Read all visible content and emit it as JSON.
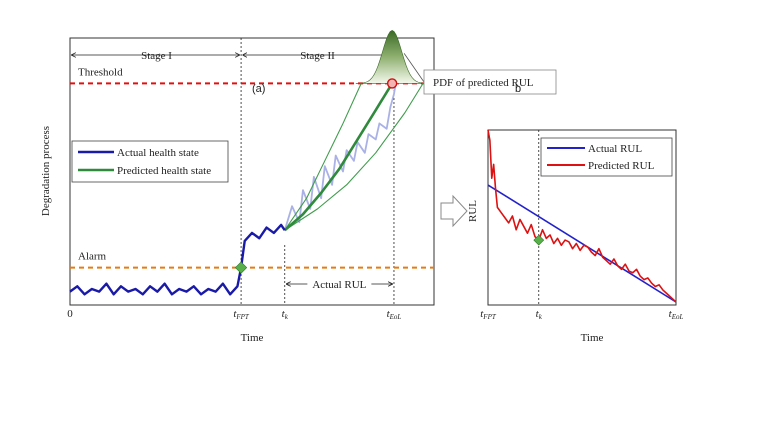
{
  "chart_data": [
    {
      "type": "line",
      "panel_label": "(a)",
      "xlabel": "Time",
      "ylabel": "Degradation process",
      "x_ticks": [
        "0",
        "t_FPT",
        "t_k",
        "t_EoL"
      ],
      "stages": [
        "Stage I",
        "Stage II"
      ],
      "threshold_label": "Threshold",
      "alarm_label": "Alarm",
      "pdf_label": "PDF of predicted RUL",
      "actual_rul_label": "Actual RUL",
      "xlim": [
        0,
        100
      ],
      "ylim": [
        0,
        100
      ],
      "t_fpt": 47,
      "t_k": 59,
      "t_eol": 89,
      "threshold_level": 83,
      "alarm_level": 14,
      "legend": [
        "Actual health state",
        "Predicted health state"
      ],
      "series": [
        {
          "name": "Actual health state",
          "color": "#1a1aa8",
          "x": [
            0,
            2,
            4,
            6,
            8,
            10,
            12,
            14,
            16,
            18,
            20,
            22,
            24,
            26,
            28,
            30,
            32,
            34,
            36,
            38,
            40,
            42,
            44,
            46,
            47,
            48,
            50,
            52,
            54,
            56,
            58,
            59
          ],
          "y": [
            5,
            7,
            4,
            6,
            5,
            8,
            4,
            7,
            5,
            6,
            4,
            7,
            5,
            8,
            4,
            6,
            5,
            7,
            4,
            6,
            5,
            8,
            4,
            7,
            14,
            24,
            27,
            25,
            29,
            27,
            30,
            28
          ]
        },
        {
          "name": "Predicted health state",
          "color": "#2f8a3c",
          "x": [
            59,
            64,
            69,
            74,
            79,
            84,
            88.5
          ],
          "y": [
            28,
            34,
            42,
            51,
            62,
            73,
            83
          ]
        },
        {
          "name": "Prediction bound upper",
          "color": "#3f9c4c",
          "x": [
            59,
            65,
            70,
            75,
            80
          ],
          "y": [
            28,
            40,
            54,
            68,
            83
          ]
        },
        {
          "name": "Prediction bound lower",
          "color": "#3f9c4c",
          "x": [
            59,
            68,
            76,
            84,
            92,
            97
          ],
          "y": [
            28,
            36,
            45,
            57,
            72,
            83
          ]
        },
        {
          "name": "Actual future state",
          "color": "#a9b1e6",
          "x": [
            59,
            61,
            63,
            64,
            66,
            67,
            69,
            70,
            72,
            73,
            75,
            76,
            78,
            79,
            81,
            82,
            84,
            85,
            87,
            88,
            89,
            89.5
          ],
          "y": [
            28,
            37,
            31,
            43,
            36,
            48,
            40,
            52,
            45,
            56,
            50,
            58,
            54,
            61,
            57,
            64,
            62,
            68,
            66,
            74,
            79,
            83
          ]
        }
      ]
    },
    {
      "type": "line",
      "panel_label": "b",
      "xlabel": "Time",
      "ylabel": "RUL",
      "x_ticks": [
        "t_FPT",
        "t_k",
        "t_EoL"
      ],
      "xlim": [
        0,
        100
      ],
      "ylim": [
        0,
        100
      ],
      "t_k": 27,
      "legend": [
        "Actual RUL",
        "Predicted RUL"
      ],
      "series": [
        {
          "name": "Actual RUL",
          "color": "#2222cc",
          "x": [
            0,
            100
          ],
          "y": [
            68,
            0
          ]
        },
        {
          "name": "Predicted RUL",
          "color": "#dd1111",
          "x": [
            0,
            1,
            2,
            3,
            4,
            5,
            7,
            9,
            11,
            13,
            15,
            17,
            19,
            21,
            23,
            25,
            27,
            29,
            31,
            33,
            35,
            37,
            39,
            41,
            43,
            45,
            47,
            49,
            51,
            53,
            55,
            57,
            59,
            61,
            63,
            65,
            67,
            69,
            71,
            73,
            75,
            77,
            79,
            81,
            83,
            85,
            87,
            89,
            91,
            93,
            95,
            97,
            100
          ],
          "y": [
            100,
            94,
            72,
            80,
            66,
            55,
            52,
            49,
            46,
            50,
            42,
            48,
            44,
            40,
            45,
            38,
            36,
            42,
            37,
            39,
            34,
            37,
            33,
            36,
            35,
            31,
            34,
            30,
            33,
            32,
            29,
            27,
            31,
            26,
            24,
            22,
            25,
            21,
            19,
            22,
            18,
            17,
            19,
            15,
            13,
            14,
            11,
            9,
            10,
            7,
            5,
            3,
            0
          ]
        }
      ]
    }
  ]
}
